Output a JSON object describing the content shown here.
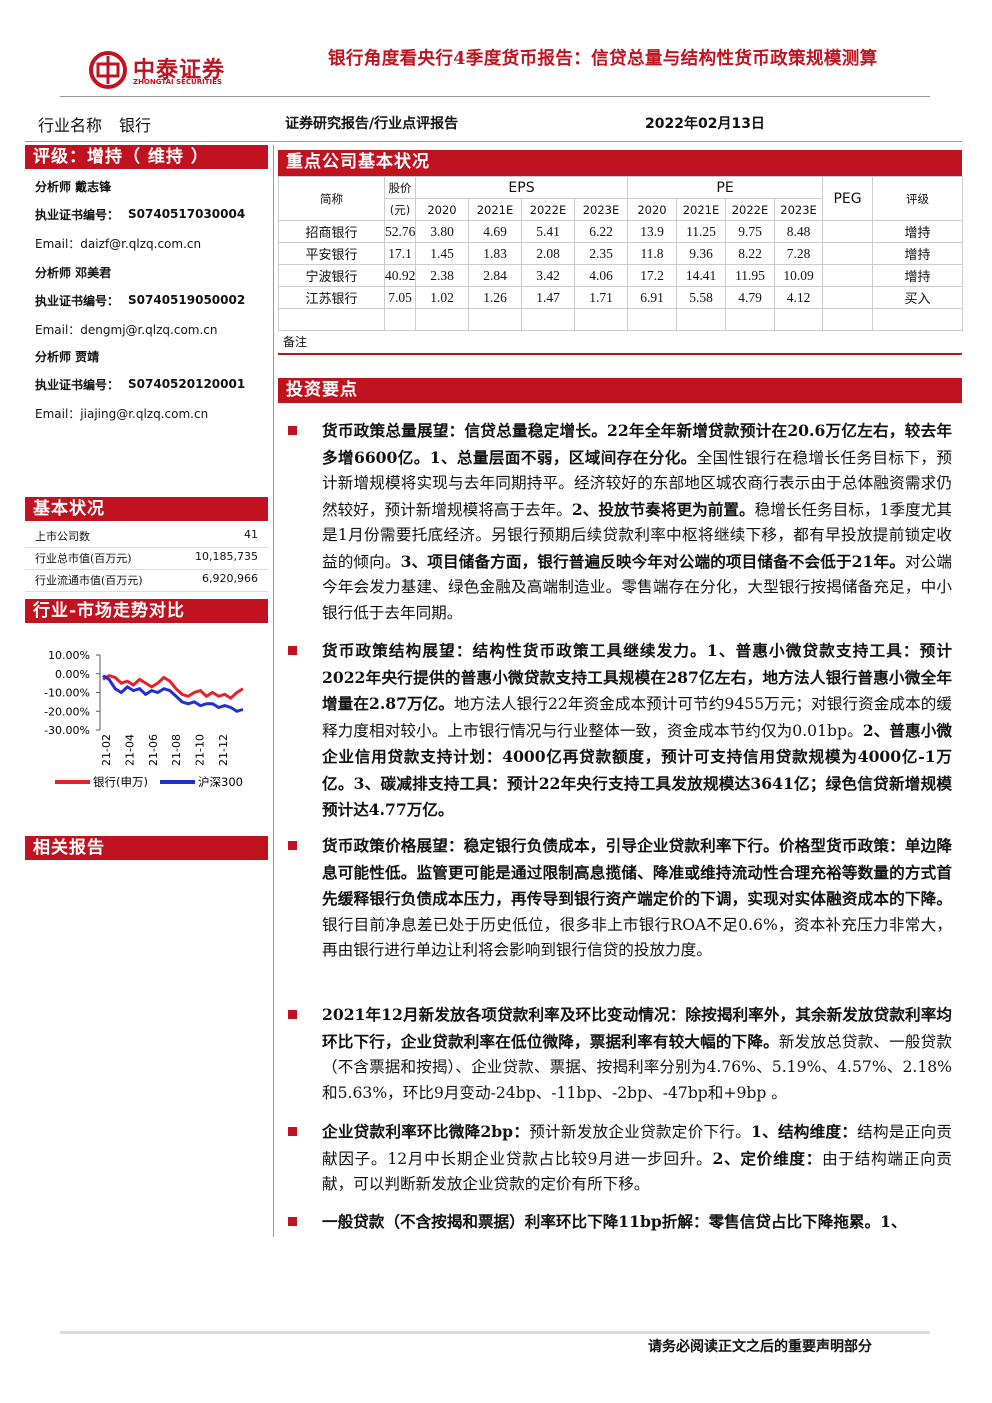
{
  "header": {
    "logo_cn": "中泰证券",
    "logo_en": "ZHONGTAI SECURITIES",
    "title": "银行角度看央行4季度货币报告：信贷总量与结构性货币政策规模测算",
    "industry_label": "行业名称",
    "industry": "银行",
    "report_type": "证券研究报告/行业点评报告",
    "date": "2022年02月13日"
  },
  "sidebar": {
    "rating": "评级：增持（ 维持 ）",
    "analysts": [
      {
        "role": "分析师 戴志锋",
        "cert_label": "执业证书编号：",
        "cert_no": "S0740517030004",
        "email": "Email：daizf@r.qlzq.com.cn"
      },
      {
        "role": "分析师 邓美君",
        "cert_label": "执业证书编号：",
        "cert_no": "S0740519050002",
        "email": "Email：dengmj@r.qlzq.com.cn"
      },
      {
        "role": "分析师 贾靖",
        "cert_label": "执业证书编号：",
        "cert_no": "S0740520120001",
        "email": "Email：jiajing@r.qlzq.com.cn"
      }
    ],
    "basic": {
      "title": "基本状况",
      "rows": [
        [
          "上市公司数",
          "41"
        ],
        [
          "行业总市值(百万元)",
          "10,185,735"
        ],
        [
          "行业流通市值(百万元)",
          "6,920,966"
        ]
      ]
    },
    "trend": {
      "title": "行业-市场走势对比",
      "ylim": [
        -30,
        10
      ],
      "yticks": [
        {
          "value": 10,
          "label": "10.00%"
        },
        {
          "value": 0,
          "label": "0.00%"
        },
        {
          "value": -10,
          "label": "-10.00%"
        },
        {
          "value": -20,
          "label": "-20.00%"
        },
        {
          "value": -30,
          "label": "-30.00%"
        }
      ],
      "xticks": [
        "21-02",
        "21-04",
        "21-06",
        "21-08",
        "21-10",
        "21-12"
      ],
      "series": [
        {
          "name": "银行(申万)",
          "color": "#e8202a",
          "values": [
            -3,
            -1,
            -2,
            -5,
            -4,
            -6,
            -3,
            -5,
            -7,
            -5,
            -2,
            -4,
            -8,
            -11,
            -12,
            -10,
            -9,
            -12,
            -10,
            -12,
            -11,
            -13,
            -10,
            -8
          ]
        },
        {
          "name": "沪深300",
          "color": "#1f2fd0",
          "values": [
            -1,
            -3,
            -8,
            -10,
            -7,
            -9,
            -8,
            -11,
            -9,
            -10,
            -8,
            -9,
            -12,
            -15,
            -16,
            -15,
            -17,
            -16,
            -16,
            -18,
            -17,
            -18,
            -20,
            -19
          ]
        }
      ]
    },
    "related": {
      "title": "相关报告"
    }
  },
  "companies": {
    "title": "重点公司基本状况",
    "columns": {
      "name": "简称",
      "price": "股价",
      "price_unit": "(元)",
      "eps": "EPS",
      "pe": "PE",
      "peg": "PEG",
      "rating": "评级",
      "years": [
        "2020",
        "2021E",
        "2022E",
        "2023E"
      ]
    },
    "rows": [
      {
        "name": "招商银行",
        "price": "52.76",
        "eps": [
          "3.80",
          "4.69",
          "5.41",
          "6.22"
        ],
        "pe": [
          "13.9",
          "11.25",
          "9.75",
          "8.48"
        ],
        "rating": "增持"
      },
      {
        "name": "平安银行",
        "price": "17.1",
        "eps": [
          "1.45",
          "1.83",
          "2.08",
          "2.35"
        ],
        "pe": [
          "11.8",
          "9.36",
          "8.22",
          "7.28"
        ],
        "rating": "增持"
      },
      {
        "name": "宁波银行",
        "price": "40.92",
        "eps": [
          "2.38",
          "2.84",
          "3.42",
          "4.06"
        ],
        "pe": [
          "17.2",
          "14.41",
          "11.95",
          "10.09"
        ],
        "rating": "增持"
      },
      {
        "name": "江苏银行",
        "price": "7.05",
        "eps": [
          "1.02",
          "1.26",
          "1.47",
          "1.71"
        ],
        "pe": [
          "6.91",
          "5.58",
          "4.79",
          "4.12"
        ],
        "rating": "买入"
      }
    ],
    "note": "备注"
  },
  "points": {
    "title": "投资要点",
    "paragraphs": [
      [
        {
          "text": "货币政策总量展望：信贷总量稳定增长。22年全年新增贷款预计在20.6万亿左右，较去年多增6600亿。1、总量层面不弱，区域间存在分化。",
          "bold": true
        },
        {
          "text": "全国性银行在稳增长任务目标下，预计新增规模将实现与去年同期持平。经济较好的东部地区城农商行表示由于总体融资需求仍然较好，预计新增规模将高于去年。",
          "bold": false
        },
        {
          "text": "2、投放节奏将更为前置。",
          "bold": true
        },
        {
          "text": "稳增长任务目标，1季度尤其是1月份需要托底经济。另银行预期后续贷款利率中枢将继续下移，都有早投放提前锁定收益的倾向。",
          "bold": false
        },
        {
          "text": "3、项目储备方面，银行普遍反映今年对公端的项目储备不会低于21年。",
          "bold": true
        },
        {
          "text": "对公端今年会发力基建、绿色金融及高端制造业。零售端存在分化，大型银行按揭储备充足，中小银行低于去年同期。",
          "bold": false
        }
      ],
      [
        {
          "text": "货币政策结构展望：结构性货币政策工具继续发力。1、普惠小微贷款支持工具：预计2022年央行提供的普惠小微贷款支持工具规模在287亿左右，地方法人银行普惠小微全年增量在2.87万亿。",
          "bold": true
        },
        {
          "text": "地方法人银行22年资金成本预计可节约9455万元；对银行资金成本的缓释力度相对较小。上市银行情况与行业整体一致，资金成本节约仅为0.01bp。",
          "bold": false
        },
        {
          "text": "2、普惠小微企业信用贷款支持计划：4000亿再贷款额度，预计可支持信用贷款规模为4000亿-1万亿。3、碳减排支持工具：预计22年央行支持工具发放规模达3641亿；绿色信贷新增规模预计达4.77万亿。",
          "bold": true
        }
      ],
      [
        {
          "text": "货币政策价格展望：稳定银行负债成本，引导企业贷款利率下行。价格型货币政策：单边降息可能性低。监管更可能是通过限制高息揽储、降准或维持流动性合理充裕等数量的方式首先缓释银行负债成本压力，再传导到银行资产端定价的下调，实现对实体融资成本的下降。",
          "bold": true
        },
        {
          "text": "银行目前净息差已处于历史低位，很多非上市银行ROA不足0.6%，资本补充压力非常大，再由银行进行单边让利将会影响到银行信贷的投放力度。",
          "bold": false
        }
      ],
      [
        {
          "text": "2021年12月新发放各项贷款利率及环比变动情况：除按揭利率外，其余新发放贷款利率均环比下行，企业贷款利率在低位微降，票据利率有较大幅的下降。",
          "bold": true
        },
        {
          "text": "新发放总贷款、一般贷款（不含票据和按揭）、企业贷款、票据、按揭利率分别为4.76%、5.19%、4.57%、2.18%和5.63%，环比9月变动-24bp、-11bp、-2bp、-47bp和+9bp 。",
          "bold": false
        }
      ],
      [
        {
          "text": "企业贷款利率环比微降2bp：",
          "bold": true
        },
        {
          "text": "预计新发放企业贷款定价下行。",
          "bold": false
        },
        {
          "text": "1、结构维度：",
          "bold": true
        },
        {
          "text": "结构是正向贡献因子。12月中长期企业贷款占比较9月进一步回升。",
          "bold": false
        },
        {
          "text": "2、定价维度：",
          "bold": true
        },
        {
          "text": "由于结构端正向贡献，可以判断新发放企业贷款的定价有所下移。",
          "bold": false
        }
      ],
      [
        {
          "text": "一般贷款（不含按揭和票据）利率环比下降11bp折解：零售信贷占比下降拖累。1、",
          "bold": true
        }
      ]
    ]
  },
  "footer": "请务必阅读正文之后的重要声明部分"
}
